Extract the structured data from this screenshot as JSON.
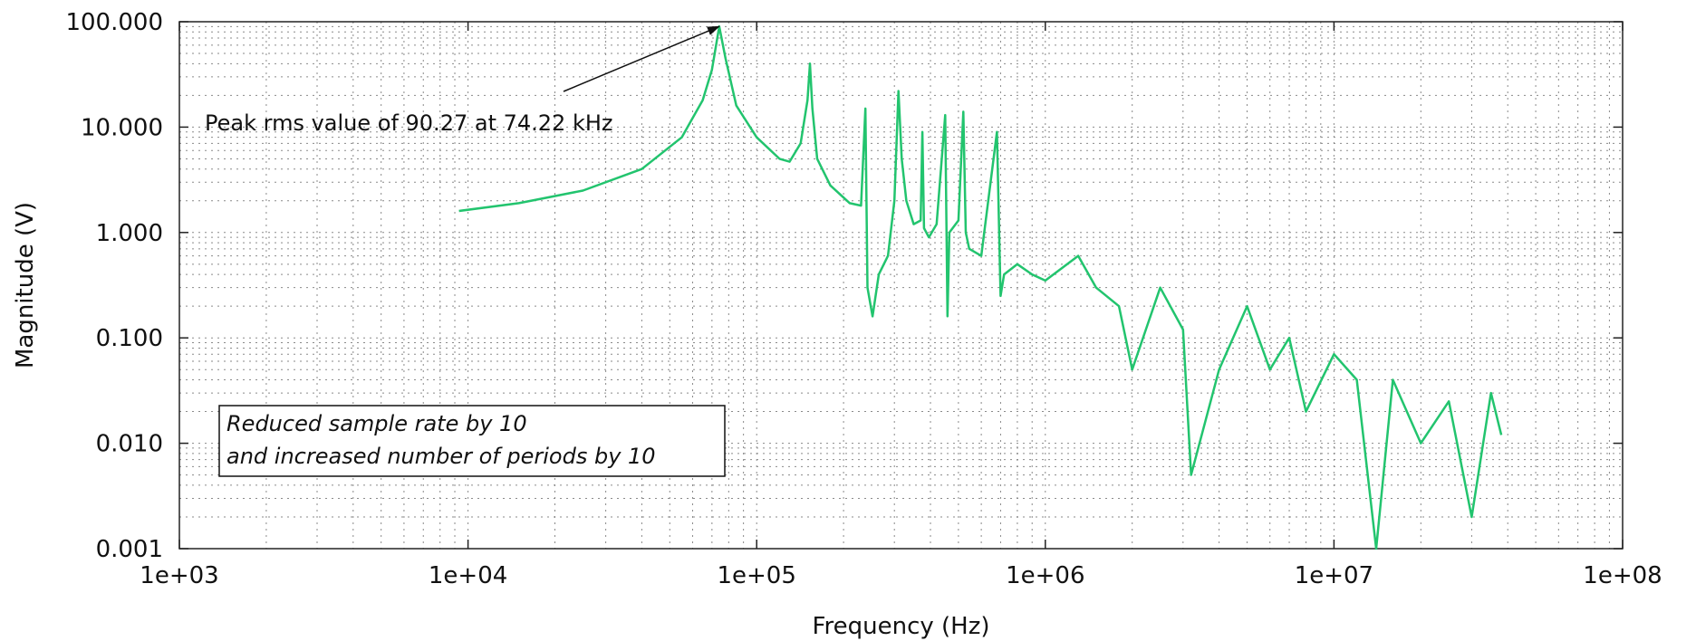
{
  "chart_data": {
    "type": "line",
    "xlabel": "Frequency (Hz)",
    "ylabel": "Magnitude (V)",
    "x_scale": "log",
    "y_scale": "log",
    "xlim": [
      1000,
      100000000
    ],
    "ylim": [
      0.001,
      100
    ],
    "grid": true,
    "x_tick_values": [
      1000,
      10000,
      100000,
      1000000,
      10000000,
      100000000
    ],
    "x_tick_labels": [
      "1e+03",
      "1e+04",
      "1e+05",
      "1e+06",
      "1e+07",
      "1e+08"
    ],
    "y_tick_values": [
      0.001,
      0.01,
      0.1,
      1,
      10,
      100
    ],
    "y_tick_labels": [
      "0.001",
      "0.010",
      "0.100",
      "1.000",
      "10.000",
      "100.000"
    ],
    "series_color": "#22c46e",
    "series": [
      {
        "x": [
          9300,
          15000,
          25000,
          40000,
          55000,
          65000,
          70000,
          74220,
          78000,
          85000,
          100000,
          120000,
          130000,
          142000,
          150000,
          153000,
          156000,
          162000,
          180000,
          210000,
          230000,
          238000,
          242000,
          252000,
          265000,
          285000,
          300000,
          310000,
          318000,
          330000,
          350000,
          370000,
          375000,
          380000,
          395000,
          420000,
          450000,
          458000,
          465000,
          500000,
          520000,
          530000,
          545000,
          600000,
          680000,
          700000,
          720000,
          800000,
          900000,
          1000000,
          1300000,
          1500000,
          1800000,
          2000000,
          2500000,
          3000000,
          3200000,
          4000000,
          5000000,
          6000000,
          7000000,
          8000000,
          10000000,
          12000000,
          14000000,
          16000000,
          20000000,
          25000000,
          30000000,
          35000000,
          38000000
        ],
        "y": [
          1.6,
          1.9,
          2.5,
          4.0,
          8.0,
          18.0,
          35.0,
          90.27,
          45.0,
          16.0,
          8.0,
          5.0,
          4.7,
          7.0,
          18.0,
          40.0,
          15.0,
          5.0,
          2.8,
          1.9,
          1.8,
          15.0,
          0.3,
          0.16,
          0.4,
          0.6,
          2.0,
          22.0,
          5.0,
          2.0,
          1.2,
          1.3,
          9.0,
          1.1,
          0.9,
          1.2,
          13.0,
          0.16,
          1.0,
          1.3,
          14.0,
          1.0,
          0.7,
          0.6,
          9.0,
          0.25,
          0.4,
          0.5,
          0.4,
          0.35,
          0.6,
          0.3,
          0.2,
          0.05,
          0.3,
          0.12,
          0.005,
          0.05,
          0.2,
          0.05,
          0.1,
          0.02,
          0.07,
          0.04,
          0.001,
          0.04,
          0.01,
          0.025,
          0.002,
          0.03,
          0.012
        ]
      }
    ],
    "annotations": [
      {
        "text": "Peak rms value of 90.27 at 74.22 kHz",
        "arrow_to": [
          74220,
          90.27
        ]
      },
      {
        "text_lines": [
          "Reduced sample rate by 10",
          "and increased number of periods by 10"
        ],
        "style": "italic, boxed"
      }
    ]
  }
}
